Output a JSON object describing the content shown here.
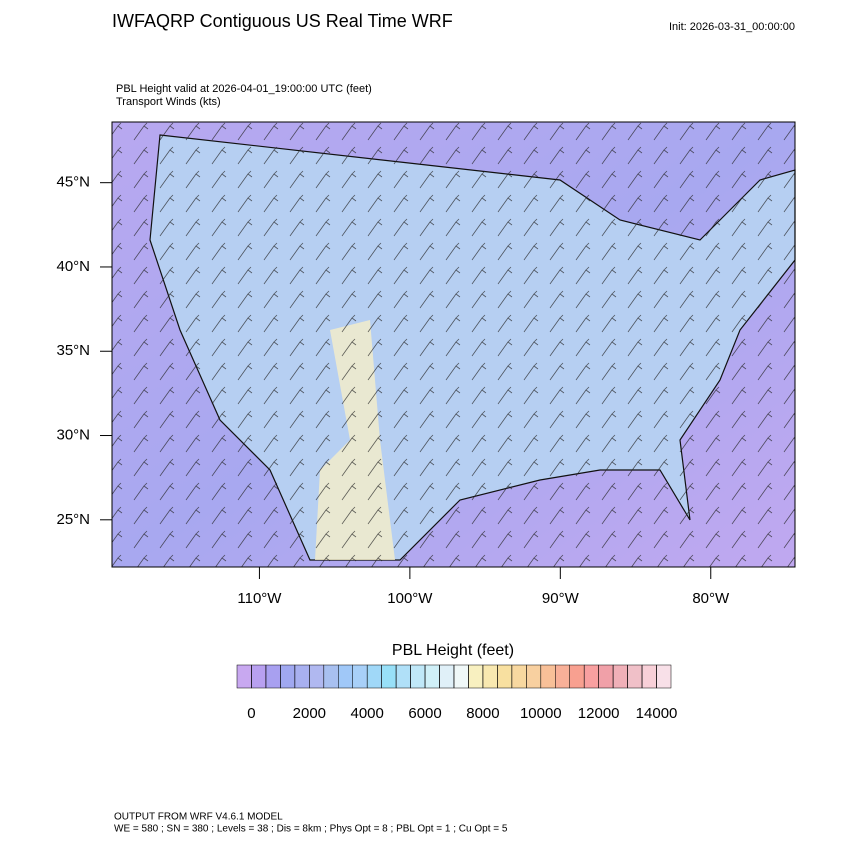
{
  "header": {
    "title": "IWFAQRP Contiguous US Real Time WRF",
    "init": "Init: 2026-03-31_00:00:00",
    "subtitle": [
      "PBL Height valid at 2026-04-01_19:00:00 UTC   (feet)",
      "Transport Winds   (kts)"
    ]
  },
  "map": {
    "lonlim": [
      -119.8,
      -74.4
    ],
    "latlim": [
      22.2,
      48.6
    ],
    "lat_ticks": [
      {
        "value": 45,
        "label": "45°N"
      },
      {
        "value": 40,
        "label": "40°N"
      },
      {
        "value": 35,
        "label": "35°N"
      },
      {
        "value": 30,
        "label": "30°N"
      },
      {
        "value": 25,
        "label": "25°N"
      }
    ],
    "lon_ticks": [
      {
        "value": -110,
        "label": "110°W"
      },
      {
        "value": -100,
        "label": "100°W"
      },
      {
        "value": -90,
        "label": "90°W"
      },
      {
        "value": -80,
        "label": "80°W"
      }
    ]
  },
  "colorbar": {
    "title": "PBL Height  (feet)",
    "levels": [
      0,
      500,
      1000,
      1500,
      2000,
      2500,
      3000,
      3500,
      4000,
      4500,
      5000,
      5500,
      6000,
      6500,
      7000,
      7500,
      8000,
      8500,
      9000,
      9500,
      10000,
      10500,
      11000,
      11500,
      12000,
      12500,
      13000,
      13500,
      14000
    ],
    "ticks": [
      0,
      2000,
      4000,
      6000,
      8000,
      10000,
      12000,
      14000
    ],
    "colors": [
      "#c8a8f0",
      "#b8a0f0",
      "#a8a0f0",
      "#a0a8f0",
      "#a8b0f0",
      "#b0b8f0",
      "#a8c0f0",
      "#a0c8f8",
      "#a8d0f8",
      "#a0d8f8",
      "#98e0f8",
      "#b0e0f8",
      "#c0e8f8",
      "#d0f0f8",
      "#e0f0f8",
      "#f0f8f8",
      "#f8f0c0",
      "#f8e8b0",
      "#f8e0a0",
      "#f8d8a0",
      "#f8d0a0",
      "#f8c098",
      "#f8b098",
      "#f8a090",
      "#f8a0a0",
      "#f0a0a8",
      "#f0b0b8",
      "#f0c0c8",
      "#f8d0d8",
      "#f8e0e8"
    ]
  },
  "footer": [
    "OUTPUT FROM WRF V4.6.1 MODEL",
    "WE = 580 ; SN = 380 ; Levels = 38 ; Dis = 8km ; Phys Opt = 8 ; PBL Opt = 1 ; Cu Opt = 5"
  ]
}
